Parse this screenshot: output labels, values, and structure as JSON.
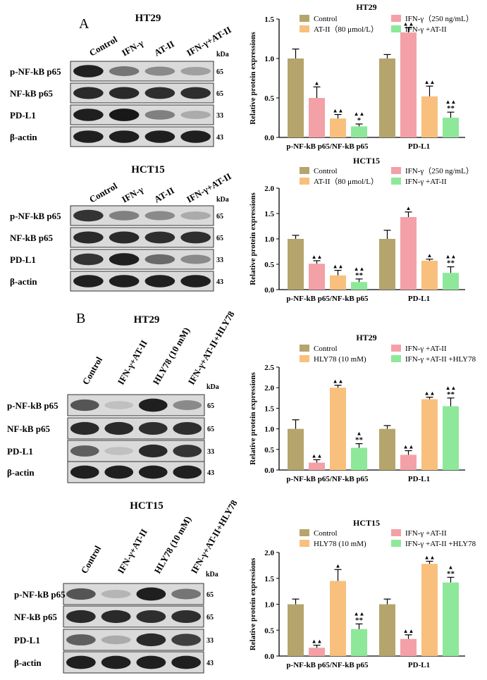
{
  "panel_labels": [
    "A",
    "B"
  ],
  "western_blots": [
    {
      "title": "HT29",
      "lanes": [
        "Control",
        "IFN-γ",
        "AT-II",
        "IFN-γ+AT-II"
      ],
      "unit": "kDa",
      "rows": [
        {
          "label": "p-NF-kB p65",
          "kda": "65",
          "intensity": [
            0.95,
            0.55,
            0.45,
            0.35
          ]
        },
        {
          "label": "NF-kB p65",
          "kda": "65",
          "intensity": [
            0.9,
            0.9,
            0.88,
            0.88
          ]
        },
        {
          "label": "PD-L1",
          "kda": "33",
          "intensity": [
            0.95,
            0.98,
            0.5,
            0.3
          ]
        },
        {
          "label": "β-actin",
          "kda": "43",
          "intensity": [
            0.95,
            0.95,
            0.95,
            0.95
          ]
        }
      ]
    },
    {
      "title": "HCT15",
      "lanes": [
        "Control",
        "IFN-γ",
        "AT-II",
        "IFN-γ+AT-II"
      ],
      "unit": "kDa",
      "rows": [
        {
          "label": "p-NF-kB p65",
          "kda": "65",
          "intensity": [
            0.85,
            0.5,
            0.45,
            0.3
          ]
        },
        {
          "label": "NF-kB p65",
          "kda": "65",
          "intensity": [
            0.9,
            0.9,
            0.88,
            0.88
          ]
        },
        {
          "label": "PD-L1",
          "kda": "33",
          "intensity": [
            0.85,
            0.95,
            0.6,
            0.45
          ]
        },
        {
          "label": "β-actin",
          "kda": "43",
          "intensity": [
            0.95,
            0.95,
            0.95,
            0.95
          ]
        }
      ]
    },
    {
      "title": "HT29",
      "lanes": [
        "Control",
        "IFN-γ+AT-II",
        "HLY78 (10 mM)",
        "IFN-γ+AT-II+HLY78"
      ],
      "unit": "kDa",
      "rows": [
        {
          "label": "p-NF-kB p65",
          "kda": "65",
          "intensity": [
            0.7,
            0.2,
            0.95,
            0.45
          ]
        },
        {
          "label": "NF-kB p65",
          "kda": "65",
          "intensity": [
            0.9,
            0.9,
            0.88,
            0.88
          ]
        },
        {
          "label": "PD-L1",
          "kda": "33",
          "intensity": [
            0.65,
            0.2,
            0.9,
            0.85
          ]
        },
        {
          "label": "β-actin",
          "kda": "43",
          "intensity": [
            0.95,
            0.95,
            0.95,
            0.95
          ]
        }
      ]
    },
    {
      "title": "HCT15",
      "lanes": [
        "Control",
        "IFN-γ+AT-II",
        "HLY78 (10 mM)",
        "IFN-γ+AT-II+HLY78"
      ],
      "unit": "kDa",
      "rows": [
        {
          "label": "p-NF-kB p65",
          "kda": "65",
          "intensity": [
            0.7,
            0.25,
            0.95,
            0.55
          ]
        },
        {
          "label": "NF-kB p65",
          "kda": "65",
          "intensity": [
            0.9,
            0.9,
            0.88,
            0.88
          ]
        },
        {
          "label": "PD-L1",
          "kda": "33",
          "intensity": [
            0.65,
            0.3,
            0.9,
            0.8
          ]
        },
        {
          "label": "β-actin",
          "kda": "43",
          "intensity": [
            0.95,
            0.95,
            0.95,
            0.95
          ]
        }
      ]
    }
  ],
  "chart_data": [
    {
      "type": "bar",
      "title": "HT29",
      "ylabel": "Relative protein expressions",
      "ylim": [
        0,
        1.5
      ],
      "yticks": [
        "0.0",
        "0.5",
        "1.0",
        "1.5"
      ],
      "categories": [
        "p-NF-kB p65/NF-kB p65",
        "PD-L1"
      ],
      "series": [
        {
          "name": "Control",
          "color": "#b5a56d",
          "values": [
            1.0,
            1.0
          ],
          "errors": [
            0.12,
            0.05
          ],
          "marks": [
            "",
            ""
          ]
        },
        {
          "name": "IFN-γ（250 ng/mL）",
          "color": "#f4a0a7",
          "values": [
            0.5,
            1.33
          ],
          "errors": [
            0.14,
            0.06
          ],
          "marks": [
            "▲",
            "▲▲"
          ]
        },
        {
          "name": "AT-II（80 μmol/L）",
          "color": "#f8c07c",
          "values": [
            0.24,
            0.52
          ],
          "errors": [
            0.05,
            0.13
          ],
          "marks": [
            "▲▲",
            "▲▲"
          ]
        },
        {
          "name": "IFN-γ +AT-II",
          "color": "#8ee89a",
          "values": [
            0.14,
            0.25
          ],
          "errors": [
            0.03,
            0.07
          ],
          "marks": [
            "▲▲\n*",
            "▲▲\n**"
          ]
        }
      ]
    },
    {
      "type": "bar",
      "title": "HCT15",
      "ylabel": "Relative protein expressions",
      "ylim": [
        0,
        2.0
      ],
      "yticks": [
        "0.0",
        "0.5",
        "1.0",
        "1.5",
        "2.0"
      ],
      "categories": [
        "p-NF-kB p65/NF-kB p65",
        "PD-L1"
      ],
      "series": [
        {
          "name": "Control",
          "color": "#b5a56d",
          "values": [
            1.0,
            1.0
          ],
          "errors": [
            0.07,
            0.17
          ],
          "marks": [
            "",
            ""
          ]
        },
        {
          "name": "IFN-γ（250 ng/mL）",
          "color": "#f4a0a7",
          "values": [
            0.51,
            1.43
          ],
          "errors": [
            0.06,
            0.1
          ],
          "marks": [
            "▲▲",
            "▲"
          ]
        },
        {
          "name": "AT-II（80 μmol/L）",
          "color": "#f8c07c",
          "values": [
            0.28,
            0.57
          ],
          "errors": [
            0.1,
            0.03
          ],
          "marks": [
            "▲▲",
            "▲"
          ]
        },
        {
          "name": "IFN-γ +AT-II",
          "color": "#8ee89a",
          "values": [
            0.15,
            0.33
          ],
          "errors": [
            0.06,
            0.12
          ],
          "marks": [
            "▲▲\n**",
            "▲▲\n**"
          ]
        }
      ]
    },
    {
      "type": "bar",
      "title": "HT29",
      "ylabel": "Relative protein expressions",
      "ylim": [
        0,
        2.5
      ],
      "yticks": [
        "0.0",
        "0.5",
        "1.0",
        "1.5",
        "2.0",
        "2.5"
      ],
      "categories": [
        "p-NF-kB p65/NF-kB p65",
        "PD-L1"
      ],
      "series": [
        {
          "name": "Control",
          "color": "#b5a56d",
          "values": [
            1.0,
            1.0
          ],
          "errors": [
            0.22,
            0.08
          ],
          "marks": [
            "",
            ""
          ]
        },
        {
          "name": "IFN-γ +AT-II",
          "color": "#f4a0a7",
          "values": [
            0.18,
            0.37
          ],
          "errors": [
            0.07,
            0.1
          ],
          "marks": [
            "▲▲",
            "▲▲"
          ]
        },
        {
          "name": "HLY78 (10 mM)",
          "color": "#f8c07c",
          "values": [
            2.0,
            1.72
          ],
          "errors": [
            0.06,
            0.05
          ],
          "marks": [
            "▲▲",
            "▲▲"
          ]
        },
        {
          "name": "IFN-γ +AT-II +HLY78",
          "color": "#8ee89a",
          "values": [
            0.54,
            1.55
          ],
          "errors": [
            0.1,
            0.2
          ],
          "marks": [
            "▲\n**",
            "▲▲\n**"
          ]
        }
      ]
    },
    {
      "type": "bar",
      "title": "HCT15",
      "ylabel": "Relative protein expressions",
      "ylim": [
        0,
        2.0
      ],
      "yticks": [
        "0.0",
        "0.5",
        "1.0",
        "1.5",
        "2.0"
      ],
      "categories": [
        "p-NF-kB p65/NF-kB p65",
        "PD-L1"
      ],
      "series": [
        {
          "name": "Control",
          "color": "#b5a56d",
          "values": [
            1.0,
            1.0
          ],
          "errors": [
            0.1,
            0.1
          ],
          "marks": [
            "",
            ""
          ]
        },
        {
          "name": "IFN-γ +AT-II",
          "color": "#f4a0a7",
          "values": [
            0.16,
            0.33
          ],
          "errors": [
            0.05,
            0.08
          ],
          "marks": [
            "▲▲",
            "▲▲"
          ]
        },
        {
          "name": "HLY78 (10 mM)",
          "color": "#f8c07c",
          "values": [
            1.45,
            1.78
          ],
          "errors": [
            0.22,
            0.05
          ],
          "marks": [
            "▲",
            "▲▲"
          ]
        },
        {
          "name": "IFN-γ +AT-II +HLY78",
          "color": "#8ee89a",
          "values": [
            0.52,
            1.42
          ],
          "errors": [
            0.1,
            0.1
          ],
          "marks": [
            "▲▲\n**",
            "▲\n**"
          ]
        }
      ]
    }
  ]
}
